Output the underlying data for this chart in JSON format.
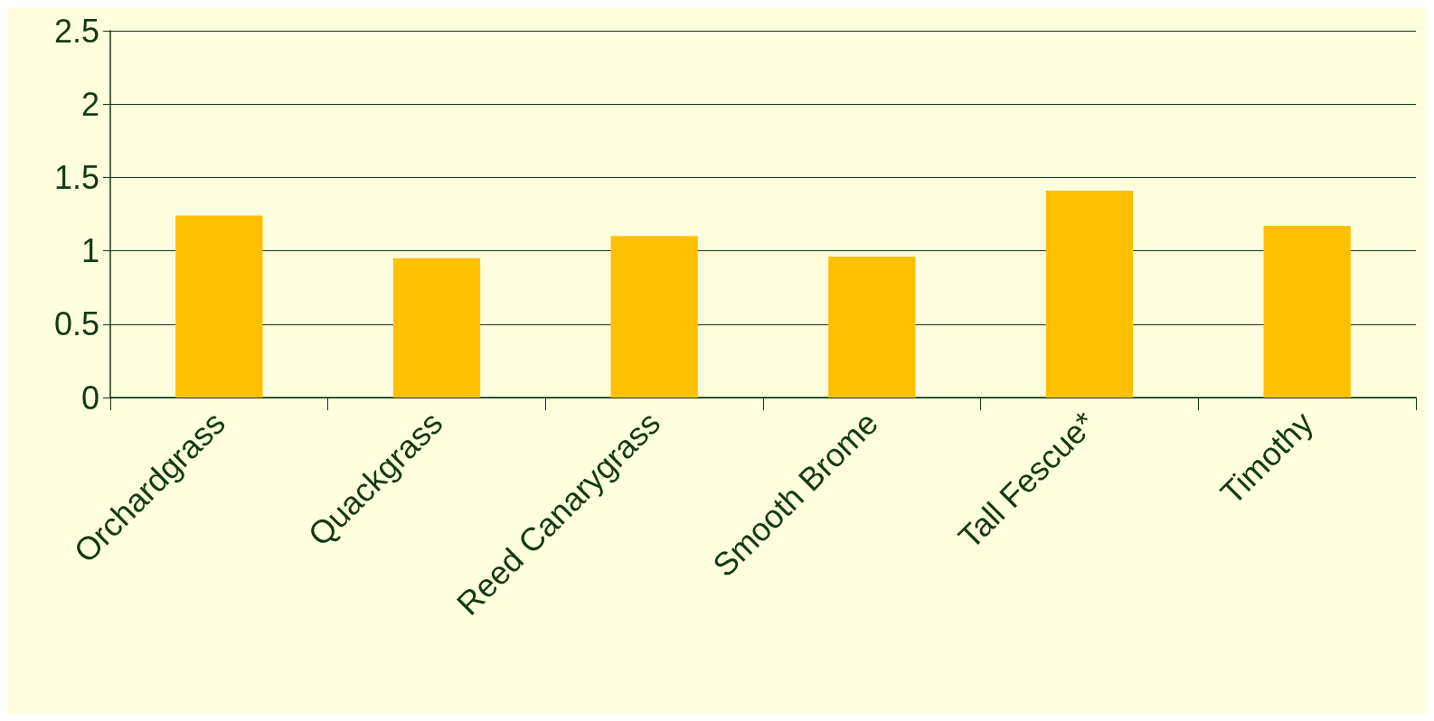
{
  "chart_data": {
    "type": "bar",
    "categories": [
      "Orchardgrass",
      "Quackgrass",
      "Reed Canarygrass",
      "Smooth Brome",
      "Tall Fescue*",
      "Timothy"
    ],
    "values": [
      1.24,
      0.95,
      1.1,
      0.96,
      1.41,
      1.17
    ],
    "color": "#ffc000",
    "ylim": [
      0,
      2.5
    ],
    "yticks": [
      0,
      0.5,
      1,
      1.5,
      2,
      2.5
    ],
    "grid": "y"
  }
}
